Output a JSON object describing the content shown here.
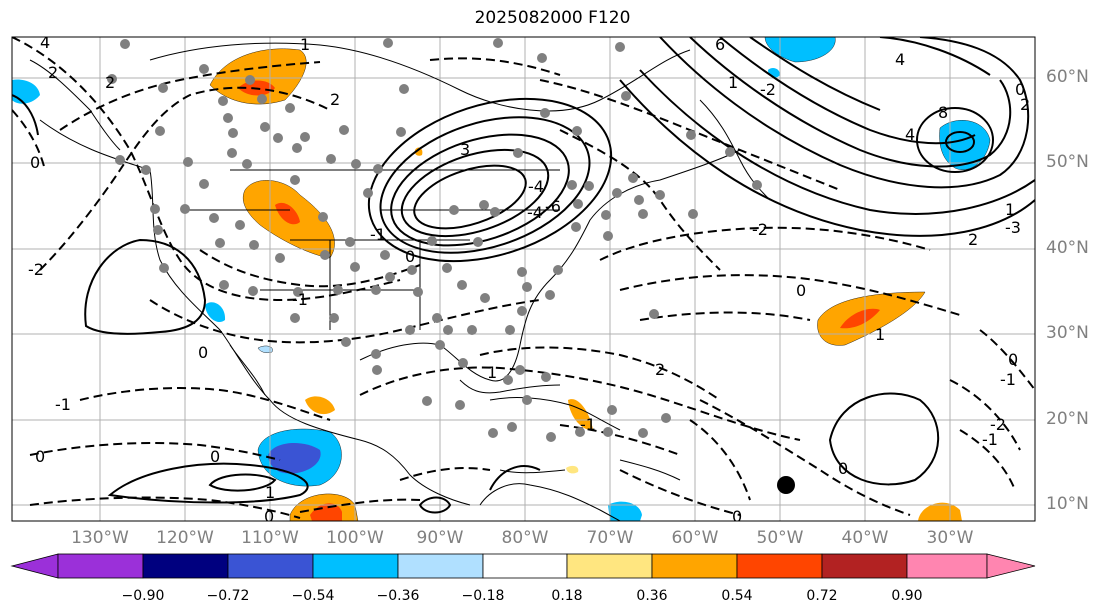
{
  "title": "2025082000 F120",
  "map": {
    "lon_range": [
      -137,
      -18
    ],
    "lat_range": [
      8,
      65
    ],
    "lon_ticks": [
      "130°W",
      "120°W",
      "110°W",
      "100°W",
      "90°W",
      "80°W",
      "70°W",
      "60°W",
      "50°W",
      "40°W",
      "30°W"
    ],
    "lat_ticks": [
      "60°N",
      "50°N",
      "40°N",
      "30°N",
      "20°N",
      "10°N"
    ],
    "contour_labels": [
      "4",
      "2",
      "2",
      "0",
      "2",
      "-2",
      "3",
      "-4",
      "-1",
      "0",
      "-1",
      "1",
      "-4",
      "-6",
      "4",
      "1",
      "-2",
      "8",
      "6",
      "4",
      "2",
      "0",
      "1",
      "2",
      "-2",
      "-3",
      "0",
      "1",
      "0",
      "-1",
      "2",
      "-2",
      "-1",
      "0",
      "0",
      "1",
      "-1",
      "0",
      "0",
      "-1",
      "0",
      "1",
      "0"
    ],
    "station_dot_color": "#808080",
    "storm_marker_color": "#000000"
  },
  "colorbar": {
    "ticks": [
      "−0.90",
      "−0.72",
      "−0.54",
      "−0.36",
      "−0.18",
      "0.18",
      "0.36",
      "0.54",
      "0.72",
      "0.90"
    ],
    "colors": [
      "#9b30d9",
      "#00007f",
      "#3a54d4",
      "#00bfff",
      "#b0e0ff",
      "#ffffff",
      "#ffe680",
      "#ffa500",
      "#ff4500",
      "#b22222",
      "#ff85b0"
    ]
  }
}
